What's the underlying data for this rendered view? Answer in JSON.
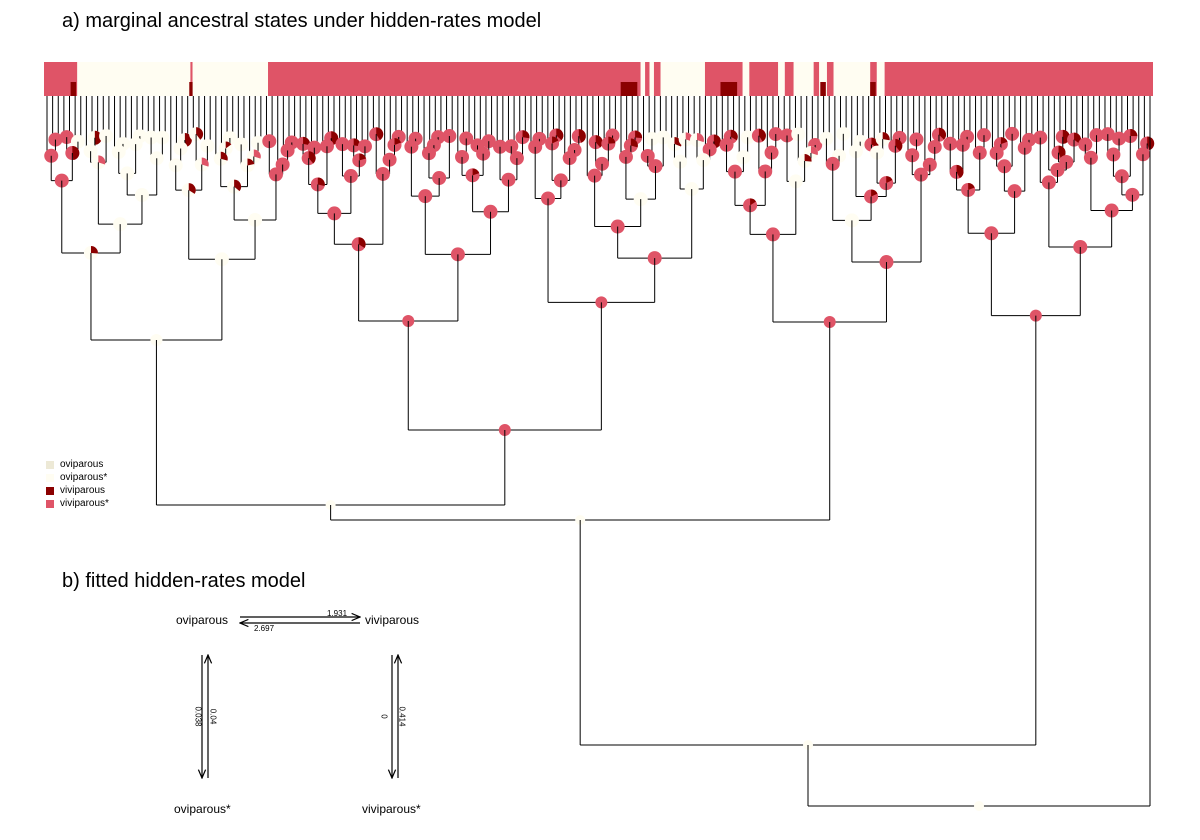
{
  "panel_a": {
    "title": "a) marginal ancestral states under hidden-rates model"
  },
  "panel_b": {
    "title": "b) fitted hidden-rates model"
  },
  "legend": [
    {
      "label": "oviparous",
      "color": "#ede9d6"
    },
    {
      "label": "oviparous*",
      "color": "#fffdf2"
    },
    {
      "label": "viviparous",
      "color": "#8b0000"
    },
    {
      "label": "viviparous*",
      "color": "#df5467"
    }
  ],
  "model": {
    "states": {
      "top_left": "oviparous",
      "top_right": "viviparous",
      "bottom_left": "oviparous*",
      "bottom_right": "viviparous*"
    },
    "rates": {
      "ovi_to_vivi": "1.931",
      "vivi_to_ovi": "2.697",
      "left_down": "0.038",
      "left_up": "0.04",
      "right_down": "0",
      "right_up": "0.414"
    }
  },
  "tip_bar": {
    "segments": [
      {
        "state": "viviparous*",
        "from": 0.0,
        "to": 0.03
      },
      {
        "state": "oviparous*",
        "from": 0.03,
        "to": 0.132
      },
      {
        "state": "viviparous*",
        "from": 0.132,
        "to": 0.134
      },
      {
        "state": "oviparous*",
        "from": 0.134,
        "to": 0.202
      },
      {
        "state": "viviparous*",
        "from": 0.202,
        "to": 0.538
      },
      {
        "state": "oviparous*",
        "from": 0.538,
        "to": 0.542
      },
      {
        "state": "viviparous*",
        "from": 0.542,
        "to": 0.546
      },
      {
        "state": "oviparous*",
        "from": 0.546,
        "to": 0.55
      },
      {
        "state": "viviparous*",
        "from": 0.55,
        "to": 0.556
      },
      {
        "state": "oviparous*",
        "from": 0.556,
        "to": 0.596
      },
      {
        "state": "viviparous*",
        "from": 0.596,
        "to": 0.63
      },
      {
        "state": "oviparous*",
        "from": 0.63,
        "to": 0.636
      },
      {
        "state": "viviparous*",
        "from": 0.636,
        "to": 0.662
      },
      {
        "state": "oviparous*",
        "from": 0.662,
        "to": 0.668
      },
      {
        "state": "viviparous*",
        "from": 0.668,
        "to": 0.676
      },
      {
        "state": "oviparous*",
        "from": 0.676,
        "to": 0.694
      },
      {
        "state": "viviparous*",
        "from": 0.694,
        "to": 0.699
      },
      {
        "state": "oviparous*",
        "from": 0.699,
        "to": 0.706
      },
      {
        "state": "viviparous*",
        "from": 0.706,
        "to": 0.712
      },
      {
        "state": "oviparous*",
        "from": 0.712,
        "to": 0.745
      },
      {
        "state": "viviparous*",
        "from": 0.745,
        "to": 0.751
      },
      {
        "state": "oviparous*",
        "from": 0.751,
        "to": 0.758
      },
      {
        "state": "viviparous*",
        "from": 0.758,
        "to": 1.0
      }
    ]
  }
}
